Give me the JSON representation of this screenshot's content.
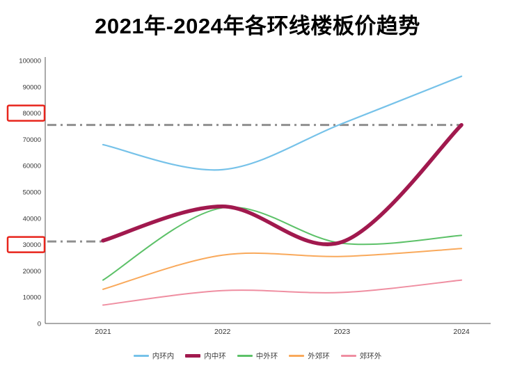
{
  "chart_data": {
    "type": "line",
    "smooth": true,
    "title": "2021年-2024年各环线楼板价趋势",
    "categories": [
      "2021",
      "2022",
      "2023",
      "2024"
    ],
    "xlabel": "",
    "ylabel": "",
    "ylim": [
      0,
      100000
    ],
    "ytick_step": 10000,
    "grid": false,
    "legend_position": "bottom",
    "series": [
      {
        "name": "内环内",
        "color": "#76c2e9",
        "width": 2.2,
        "values": [
          68000,
          58500,
          76000,
          94000
        ]
      },
      {
        "name": "内中环",
        "color": "#a1194e",
        "width": 5.5,
        "values": [
          31500,
          44500,
          31000,
          75500
        ]
      },
      {
        "name": "中外环",
        "color": "#5cc168",
        "width": 2,
        "values": [
          16500,
          44000,
          30500,
          33500
        ]
      },
      {
        "name": "外郊环",
        "color": "#f9a95b",
        "width": 2,
        "values": [
          13000,
          26000,
          25500,
          28500
        ]
      },
      {
        "name": "郊环外",
        "color": "#ef8ea1",
        "width": 2,
        "values": [
          7000,
          12500,
          11800,
          16500
        ]
      }
    ],
    "reference_lines": [
      {
        "value": 75500,
        "style": "dash-dot",
        "color": "#8f8f8f",
        "extent": "full"
      },
      {
        "value": 31200,
        "style": "dash-dot",
        "color": "#8f8f8f",
        "extent": "left-short"
      }
    ],
    "highlighted_y_ticks": [
      80000,
      30000
    ],
    "highlight_color": "#e8251c",
    "axis_color": "#555555",
    "tick_label_color": "#333333"
  }
}
